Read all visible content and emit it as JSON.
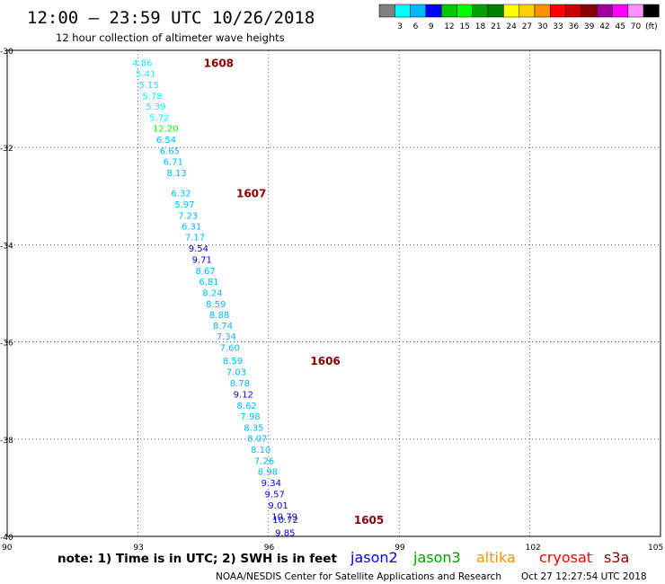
{
  "title": "12:00 – 23:59 UTC 10/26/2018",
  "subtitle": "12 hour collection of altimeter wave heights",
  "legend": {
    "bins": [
      {
        "color": "#808080",
        "label": ""
      },
      {
        "color": "#00ffff",
        "label": "3"
      },
      {
        "color": "#00b8ff",
        "label": "6"
      },
      {
        "color": "#0000ff",
        "label": "9"
      },
      {
        "color": "#00c800",
        "label": "12"
      },
      {
        "color": "#00ff00",
        "label": "15"
      },
      {
        "color": "#00a000",
        "label": "18"
      },
      {
        "color": "#008000",
        "label": "21"
      },
      {
        "color": "#ffff00",
        "label": "24"
      },
      {
        "color": "#ffd000",
        "label": "27"
      },
      {
        "color": "#ff9000",
        "label": "30"
      },
      {
        "color": "#ff0000",
        "label": "33"
      },
      {
        "color": "#c80000",
        "label": "36"
      },
      {
        "color": "#8b0000",
        "label": "39"
      },
      {
        "color": "#a000a0",
        "label": "42"
      },
      {
        "color": "#ff00ff",
        "label": "45"
      },
      {
        "color": "#ff90ff",
        "label": "70"
      },
      {
        "color": "#000000",
        "label": "(ft)"
      }
    ]
  },
  "note": "note: 1) Time is in UTC; 2) SWH is in feet",
  "satellites": [
    {
      "name": "jason2",
      "color": "#0000ff"
    },
    {
      "name": "jason3",
      "color": "#00a000"
    },
    {
      "name": "altika",
      "color": "#ff9000"
    },
    {
      "name": "cryosat",
      "color": "#ff0000"
    },
    {
      "name": "s3a",
      "color": "#8b0000"
    }
  ],
  "footer_left": "NOAA/NESDIS Center for Satellite Applications and Research",
  "footer_right": "Oct 27 12:27:54 UTC 2018",
  "chart_data": {
    "type": "scatter",
    "xlim": [
      90,
      105
    ],
    "ylim": [
      -40,
      -30
    ],
    "xticks": [
      "90",
      "93",
      "96",
      "99",
      "102",
      "105"
    ],
    "yticks": [
      "-30",
      "-32",
      "-34",
      "-36",
      "-38",
      "-40"
    ],
    "grid": true,
    "points": [
      {
        "lon": 93.12,
        "lat": -30.25,
        "label": "4.86",
        "color": "#00ffff"
      },
      {
        "lon": 93.2,
        "lat": -30.47,
        "label": "5.41",
        "color": "#00ffff"
      },
      {
        "lon": 93.27,
        "lat": -30.7,
        "label": "5.15",
        "color": "#00ffff"
      },
      {
        "lon": 93.35,
        "lat": -30.93,
        "label": "5.78",
        "color": "#00ffff"
      },
      {
        "lon": 93.43,
        "lat": -31.15,
        "label": "5.39",
        "color": "#00ffff"
      },
      {
        "lon": 93.51,
        "lat": -31.38,
        "label": "5.72",
        "color": "#00ffff"
      },
      {
        "lon": 93.59,
        "lat": -31.6,
        "label": "12.20",
        "color": "#00ff00"
      },
      {
        "lon": 93.67,
        "lat": -31.83,
        "label": "6.54",
        "color": "#00b8ff"
      },
      {
        "lon": 93.75,
        "lat": -32.06,
        "label": "6.65",
        "color": "#00b8ff"
      },
      {
        "lon": 93.83,
        "lat": -32.28,
        "label": "6.71",
        "color": "#00b8ff"
      },
      {
        "lon": 93.91,
        "lat": -32.51,
        "label": "8.13",
        "color": "#00b8ff"
      },
      {
        "lon": 94.01,
        "lat": -32.93,
        "label": "6.32",
        "color": "#00b8ff"
      },
      {
        "lon": 94.09,
        "lat": -33.16,
        "label": "5.97",
        "color": "#00b8ff"
      },
      {
        "lon": 94.17,
        "lat": -33.39,
        "label": "7.23",
        "color": "#00b8ff"
      },
      {
        "lon": 94.25,
        "lat": -33.61,
        "label": "6.31",
        "color": "#00b8ff"
      },
      {
        "lon": 94.33,
        "lat": -33.84,
        "label": "7.17",
        "color": "#00b8ff"
      },
      {
        "lon": 94.41,
        "lat": -34.07,
        "label": "9.54",
        "color": "#0000ff"
      },
      {
        "lon": 94.49,
        "lat": -34.3,
        "label": "9.71",
        "color": "#0000ff"
      },
      {
        "lon": 94.57,
        "lat": -34.53,
        "label": "8.67",
        "color": "#00b8ff"
      },
      {
        "lon": 94.65,
        "lat": -34.75,
        "label": "6.81",
        "color": "#00b8ff"
      },
      {
        "lon": 94.73,
        "lat": -34.98,
        "label": "8.24",
        "color": "#00b8ff"
      },
      {
        "lon": 94.81,
        "lat": -35.21,
        "label": "8.59",
        "color": "#00b8ff"
      },
      {
        "lon": 94.89,
        "lat": -35.43,
        "label": "8.88",
        "color": "#00b8ff"
      },
      {
        "lon": 94.97,
        "lat": -35.66,
        "label": "8.74",
        "color": "#00b8ff"
      },
      {
        "lon": 95.05,
        "lat": -35.88,
        "label": "7.34",
        "color": "#00b8ff"
      },
      {
        "lon": 95.13,
        "lat": -36.11,
        "label": "7.60",
        "color": "#00b8ff"
      },
      {
        "lon": 95.2,
        "lat": -36.38,
        "label": "8.59",
        "color": "#00b8ff"
      },
      {
        "lon": 95.28,
        "lat": -36.61,
        "label": "7.03",
        "color": "#00b8ff"
      },
      {
        "lon": 95.36,
        "lat": -36.84,
        "label": "8.78",
        "color": "#00b8ff"
      },
      {
        "lon": 95.44,
        "lat": -37.07,
        "label": "9.12",
        "color": "#0000ff"
      },
      {
        "lon": 95.52,
        "lat": -37.3,
        "label": "8.62",
        "color": "#00b8ff"
      },
      {
        "lon": 95.6,
        "lat": -37.52,
        "label": "7.98",
        "color": "#00b8ff"
      },
      {
        "lon": 95.68,
        "lat": -37.75,
        "label": "8.35",
        "color": "#00b8ff"
      },
      {
        "lon": 95.76,
        "lat": -37.98,
        "label": "8.07",
        "color": "#00b8ff"
      },
      {
        "lon": 95.84,
        "lat": -38.21,
        "label": "8.10",
        "color": "#00b8ff"
      },
      {
        "lon": 95.92,
        "lat": -38.44,
        "label": "7.26",
        "color": "#00b8ff"
      },
      {
        "lon": 96.0,
        "lat": -38.66,
        "label": "8.98",
        "color": "#00b8ff"
      },
      {
        "lon": 96.08,
        "lat": -38.89,
        "label": "9.34",
        "color": "#0000ff"
      },
      {
        "lon": 96.16,
        "lat": -39.12,
        "label": "9.57",
        "color": "#0000ff"
      },
      {
        "lon": 96.24,
        "lat": -39.35,
        "label": "9.01",
        "color": "#0000ff"
      },
      {
        "lon": 96.32,
        "lat": -39.58,
        "label": "10.79",
        "color": "#0000ff"
      },
      {
        "lon": 96.34,
        "lat": -39.65,
        "label": "10.72",
        "color": "#0000ff"
      },
      {
        "lon": 96.4,
        "lat": -39.92,
        "label": "9.85",
        "color": "#0000ff"
      }
    ],
    "times": [
      {
        "lon": 94.8,
        "lat": -30.25,
        "label": "1608"
      },
      {
        "lon": 95.55,
        "lat": -32.93,
        "label": "1607"
      },
      {
        "lon": 97.25,
        "lat": -36.38,
        "label": "1606"
      },
      {
        "lon": 98.25,
        "lat": -39.65,
        "label": "1605"
      }
    ],
    "times_color": "#8b0000"
  }
}
